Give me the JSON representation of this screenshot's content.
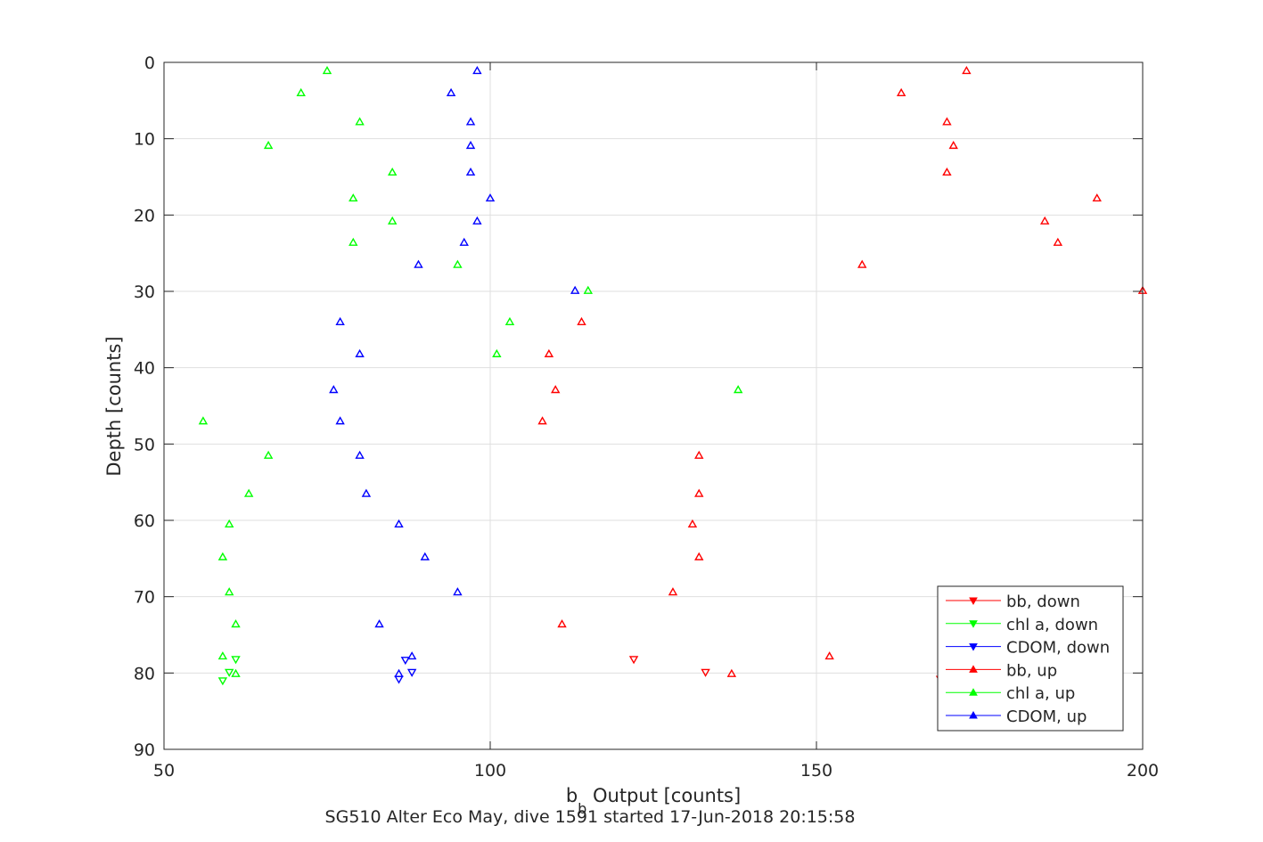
{
  "chart_data": {
    "type": "scatter",
    "title": "SG510 Alter Eco May, dive 1591 started 17-Jun-2018 20:15:58",
    "xlabel_main": "b",
    "xlabel_sub": "b",
    "xlabel_rest": " Output [counts]",
    "ylabel": "Depth [counts]",
    "xlim": [
      50,
      200
    ],
    "ylim": [
      0,
      90
    ],
    "y_reversed": true,
    "xticks": [
      50,
      100,
      150,
      200
    ],
    "yticks": [
      0,
      10,
      20,
      30,
      40,
      50,
      60,
      70,
      80,
      90
    ],
    "grid": true,
    "legend_position": "bottom-right",
    "series": [
      {
        "name": "bb, down",
        "color": "#ff0000",
        "marker": "triangle-down",
        "points": [
          [
            122,
            78.2
          ],
          [
            133,
            79.9
          ],
          [
            169,
            80.8
          ]
        ]
      },
      {
        "name": "chl a, down",
        "color": "#00ff00",
        "marker": "triangle-down",
        "points": [
          [
            61,
            78.2
          ],
          [
            60,
            79.9
          ],
          [
            59,
            81.0
          ]
        ]
      },
      {
        "name": "CDOM, down",
        "color": "#0000ff",
        "marker": "triangle-down",
        "points": [
          [
            87,
            78.3
          ],
          [
            88,
            79.9
          ],
          [
            86,
            80.8
          ]
        ]
      },
      {
        "name": "bb, up",
        "color": "#ff0000",
        "marker": "triangle-up",
        "points": [
          [
            173,
            1.1
          ],
          [
            163,
            4.0
          ],
          [
            170,
            7.8
          ],
          [
            171,
            10.9
          ],
          [
            170,
            14.4
          ],
          [
            193,
            17.8
          ],
          [
            185,
            20.8
          ],
          [
            187,
            23.6
          ],
          [
            157,
            26.5
          ],
          [
            200,
            29.9
          ],
          [
            114,
            34.0
          ],
          [
            109,
            38.2
          ],
          [
            110,
            42.9
          ],
          [
            108,
            47.0
          ],
          [
            132,
            51.5
          ],
          [
            132,
            56.5
          ],
          [
            131,
            60.5
          ],
          [
            132,
            64.8
          ],
          [
            128,
            69.4
          ],
          [
            111,
            73.6
          ],
          [
            152,
            77.8
          ],
          [
            137,
            80.1
          ]
        ]
      },
      {
        "name": "chl a, up",
        "color": "#00ff00",
        "marker": "triangle-up",
        "points": [
          [
            75,
            1.1
          ],
          [
            71,
            4.0
          ],
          [
            80,
            7.8
          ],
          [
            66,
            10.9
          ],
          [
            85,
            14.4
          ],
          [
            79,
            17.8
          ],
          [
            85,
            20.8
          ],
          [
            79,
            23.6
          ],
          [
            95,
            26.5
          ],
          [
            115,
            29.9
          ],
          [
            103,
            34.0
          ],
          [
            101,
            38.2
          ],
          [
            138,
            42.9
          ],
          [
            56,
            47.0
          ],
          [
            66,
            51.5
          ],
          [
            63,
            56.5
          ],
          [
            60,
            60.5
          ],
          [
            59,
            64.8
          ],
          [
            60,
            69.4
          ],
          [
            61,
            73.6
          ],
          [
            59,
            77.8
          ],
          [
            61,
            80.1
          ]
        ]
      },
      {
        "name": "CDOM, up",
        "color": "#0000ff",
        "marker": "triangle-up",
        "points": [
          [
            98,
            1.1
          ],
          [
            94,
            4.0
          ],
          [
            97,
            7.8
          ],
          [
            97,
            10.9
          ],
          [
            97,
            14.4
          ],
          [
            100,
            17.8
          ],
          [
            98,
            20.8
          ],
          [
            96,
            23.6
          ],
          [
            89,
            26.5
          ],
          [
            113,
            29.9
          ],
          [
            77,
            34.0
          ],
          [
            80,
            38.2
          ],
          [
            76,
            42.9
          ],
          [
            77,
            47.0
          ],
          [
            80,
            51.5
          ],
          [
            81,
            56.5
          ],
          [
            86,
            60.5
          ],
          [
            90,
            64.8
          ],
          [
            95,
            69.4
          ],
          [
            83,
            73.6
          ],
          [
            88,
            77.8
          ],
          [
            86,
            80.1
          ]
        ]
      }
    ]
  }
}
